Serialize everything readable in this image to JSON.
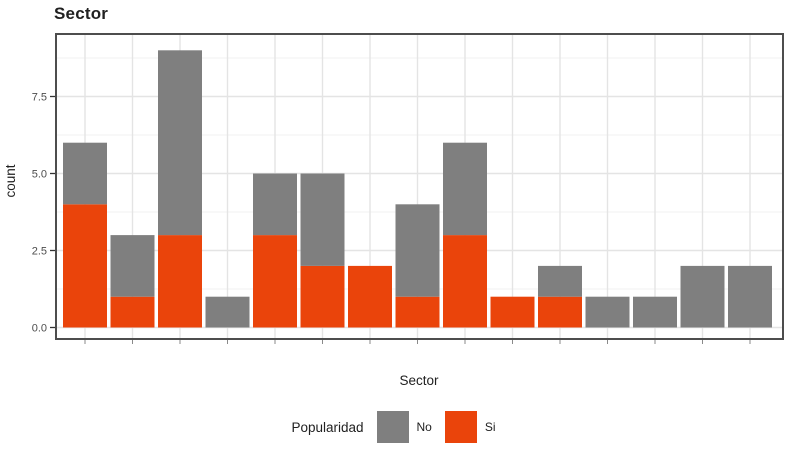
{
  "title": "Sector",
  "axes": {
    "x_title": "Sector",
    "y_title": "count"
  },
  "legend": {
    "title": "Popularidad",
    "items": [
      {
        "label": "No",
        "color": "#7F7F7F"
      },
      {
        "label": "Si",
        "color": "#EA440B"
      }
    ]
  },
  "colors": {
    "no": "#7F7F7F",
    "si": "#EA440B",
    "grid_major": "#E4E4E4",
    "grid_minor": "#F1F1F1",
    "panel_border": "#4D4D4D",
    "tick_mark": "#333333",
    "x_tick_mark": "#8A8A8A",
    "text_dark": "#212121",
    "text_tick": "#4D4D4D"
  },
  "chart_data": {
    "type": "bar",
    "stacked": true,
    "title": "Sector",
    "xlabel": "Sector",
    "ylabel": "count",
    "n_categories": 15,
    "x_tick_labels_visible": false,
    "series": [
      {
        "name": "No",
        "color": "#7F7F7F",
        "values": [
          2,
          2,
          6,
          1,
          2,
          3,
          0,
          3,
          3,
          0,
          1,
          1,
          1,
          2,
          2
        ]
      },
      {
        "name": "Si",
        "color": "#EA440B",
        "values": [
          4,
          1,
          3,
          0,
          3,
          2,
          2,
          1,
          3,
          1,
          1,
          0,
          0,
          0,
          0
        ]
      }
    ],
    "stack_totals": [
      6,
      3,
      9,
      1,
      5,
      5,
      2,
      4,
      6,
      1,
      2,
      1,
      1,
      2,
      2
    ],
    "ylim": [
      0,
      9
    ],
    "y_major_ticks": [
      0,
      2.5,
      5,
      7.5
    ],
    "y_tick_labels": [
      "0.0",
      "2.5",
      "5.0",
      "7.5"
    ],
    "y_minor_ticks": [
      1.25,
      3.75,
      6.25,
      8.75
    ],
    "grid": true,
    "legend_position": "bottom"
  }
}
